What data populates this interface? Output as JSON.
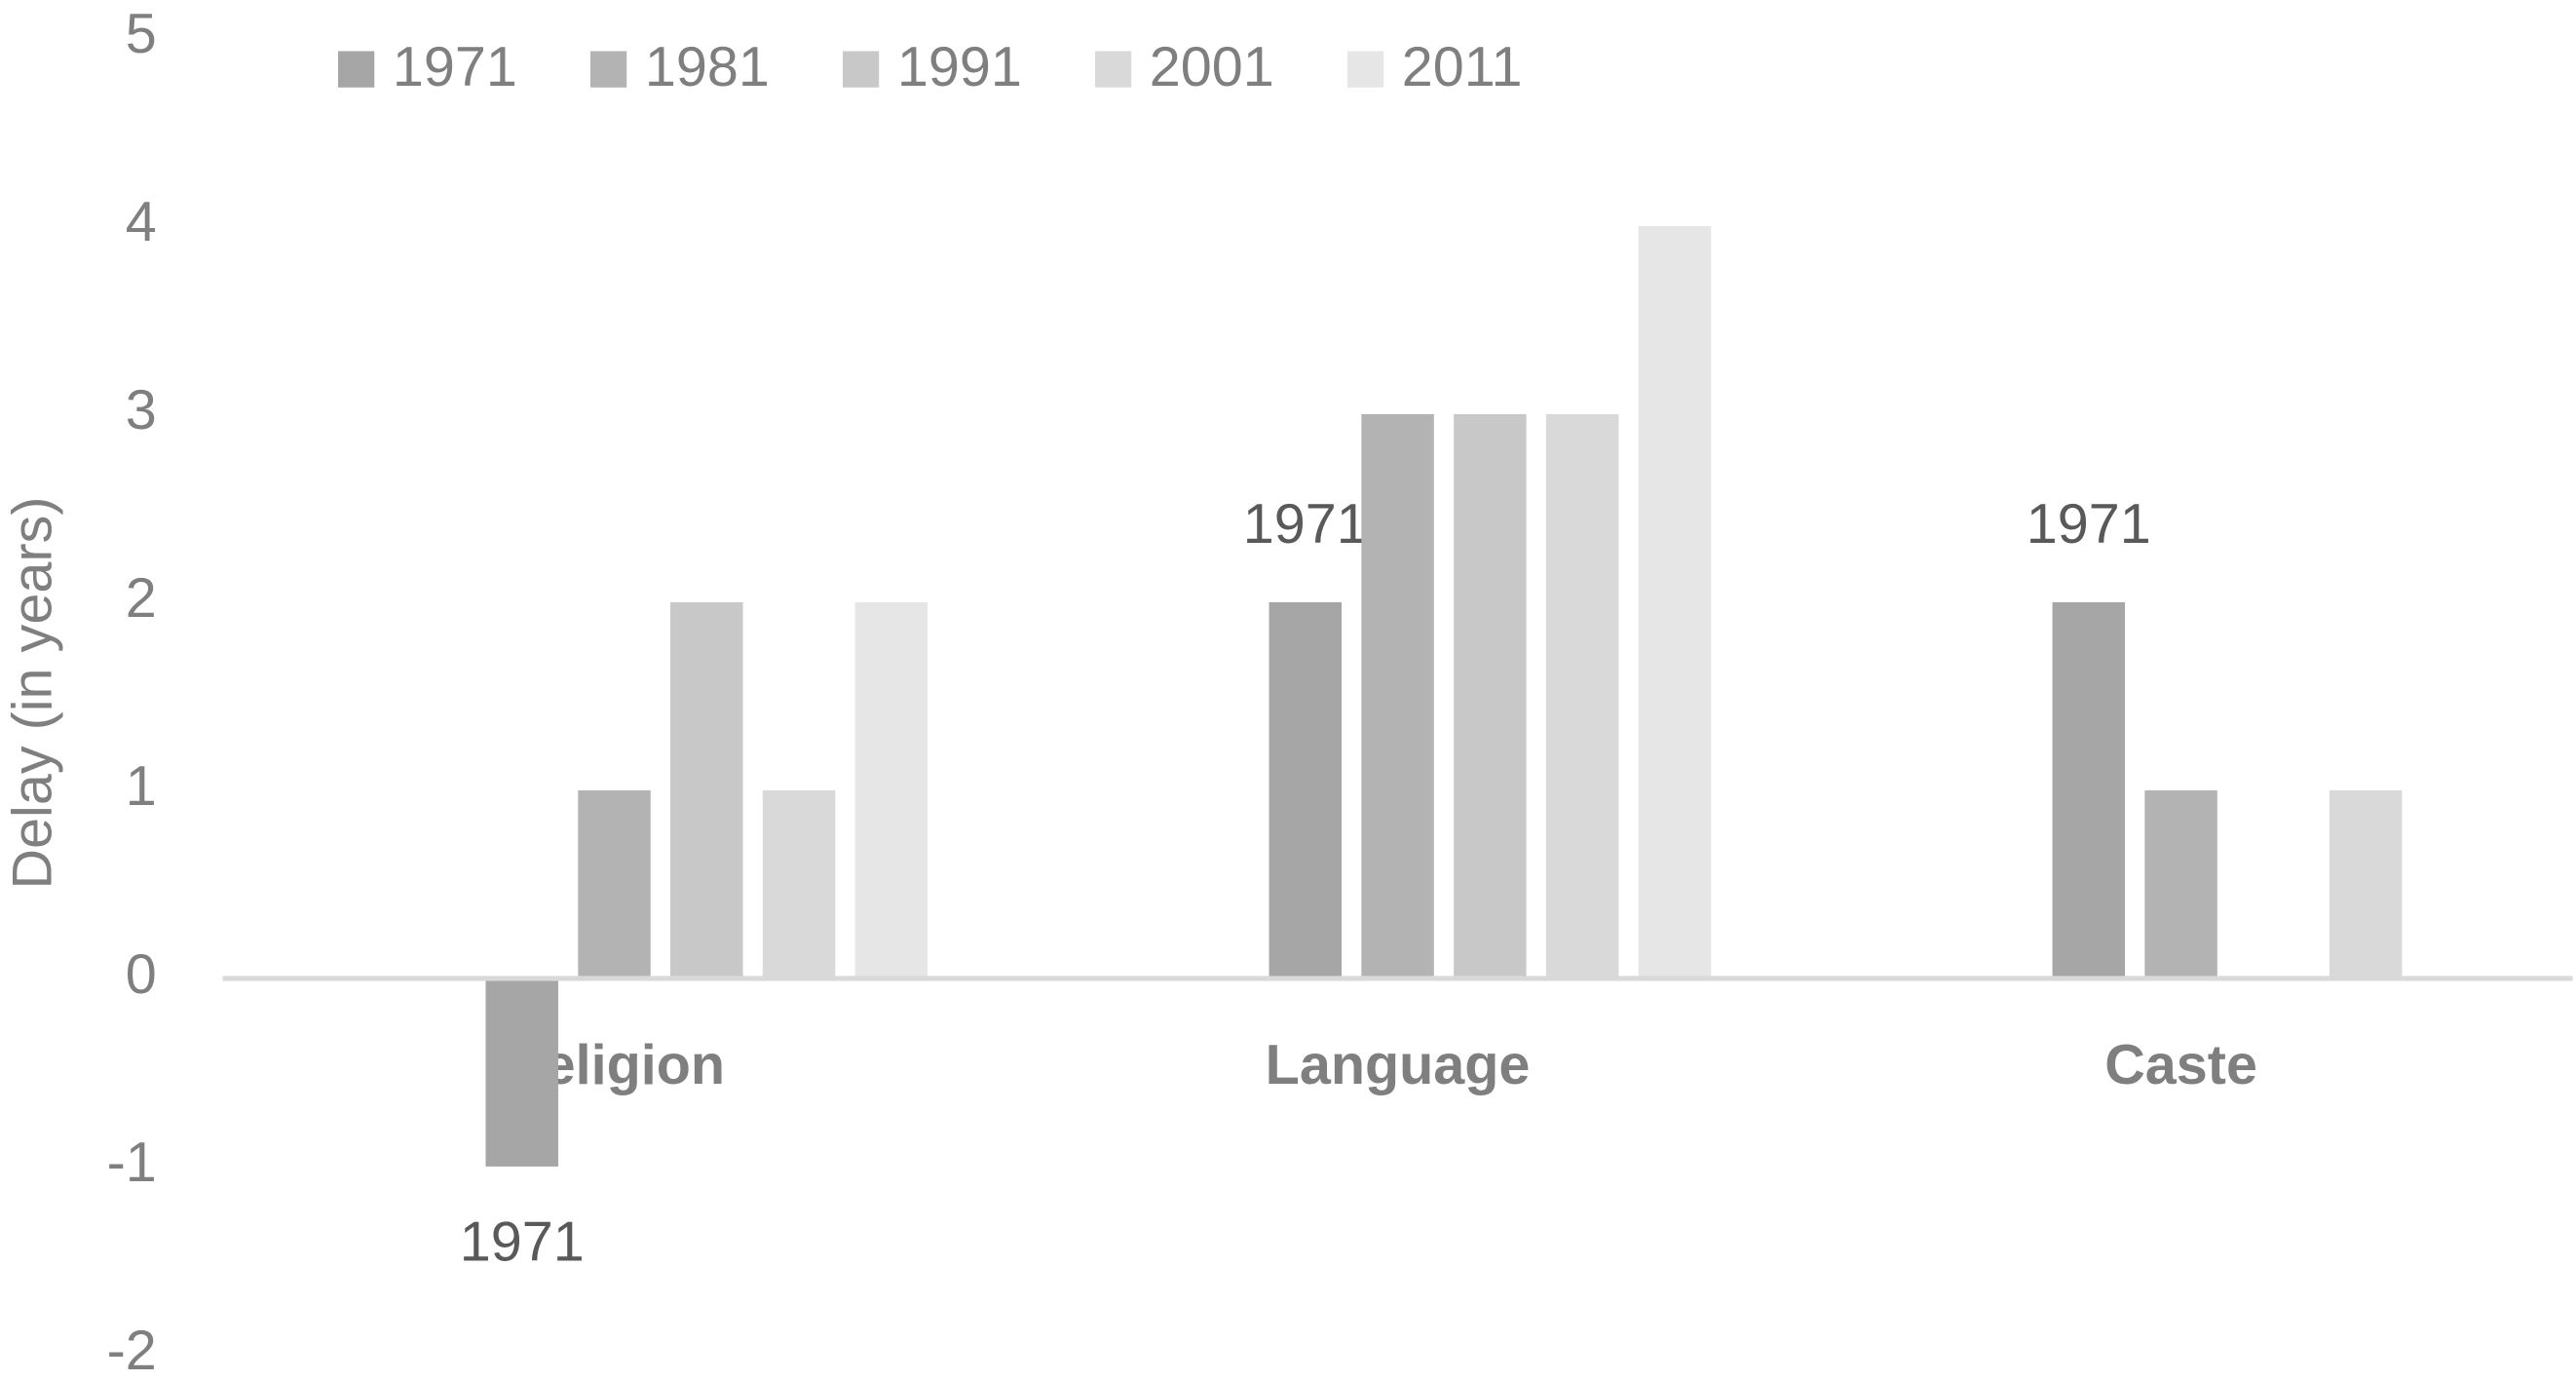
{
  "chart_data": {
    "type": "bar",
    "y_label": "Delay (in years)",
    "categories": [
      "Religion",
      "Language",
      "Caste"
    ],
    "series": [
      {
        "name": "1971",
        "color": "#a6a6a6",
        "values": [
          -1,
          2,
          2
        ],
        "point_labels": [
          "1971",
          "1971",
          "1971"
        ]
      },
      {
        "name": "1981",
        "color": "#b3b3b3",
        "values": [
          1,
          3,
          1
        ]
      },
      {
        "name": "1991",
        "color": "#c8c8c8",
        "values": [
          2,
          3,
          null
        ]
      },
      {
        "name": "2001",
        "color": "#d9d9d9",
        "values": [
          1,
          3,
          1
        ]
      },
      {
        "name": "2011",
        "color": "#e6e6e6",
        "values": [
          2,
          4,
          null
        ]
      }
    ],
    "ylim": [
      -2,
      5
    ],
    "yticks": [
      -2,
      -1,
      0,
      1,
      2,
      3,
      4,
      5
    ],
    "grid": false,
    "legend": "top"
  }
}
